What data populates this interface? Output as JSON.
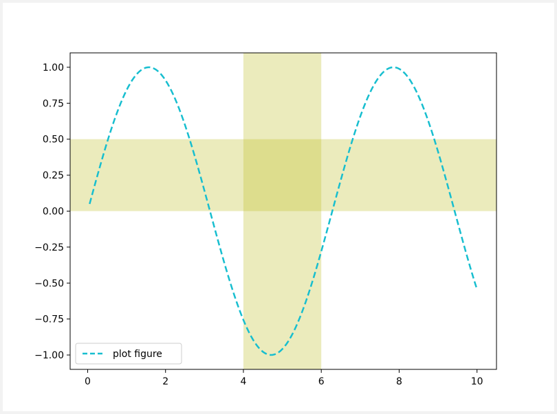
{
  "chart_data": {
    "type": "line",
    "title": "",
    "xlabel": "",
    "ylabel": "",
    "xlim": [
      -0.45,
      10.5
    ],
    "ylim": [
      -1.1,
      1.1
    ],
    "grid": false,
    "x_ticks": [
      0,
      2,
      4,
      6,
      8,
      10
    ],
    "x_tick_labels": [
      "0",
      "2",
      "4",
      "6",
      "8",
      "10"
    ],
    "y_ticks": [
      1.0,
      0.75,
      0.5,
      0.25,
      0.0,
      -0.25,
      -0.5,
      -0.75,
      -1.0
    ],
    "y_tick_labels": [
      "1.00",
      "0.75",
      "0.50",
      "0.25",
      "0.00",
      "−0.25",
      "−0.50",
      "−0.75",
      "−1.00"
    ],
    "series": [
      {
        "name": "plot figure",
        "function": "sin(x)",
        "x_start": 0.05,
        "x_end": 10.0,
        "num_points": 200,
        "color": "#17becf",
        "line_style": "dashed"
      }
    ],
    "spans": [
      {
        "orientation": "horizontal",
        "from": 0.0,
        "to": 0.5,
        "color": "#bcbd22",
        "alpha": 0.3
      },
      {
        "orientation": "vertical",
        "from": 4.0,
        "to": 6.0,
        "color": "#bcbd22",
        "alpha": 0.3
      }
    ],
    "legend": {
      "position": "lower left",
      "entries": [
        "plot figure"
      ]
    }
  }
}
